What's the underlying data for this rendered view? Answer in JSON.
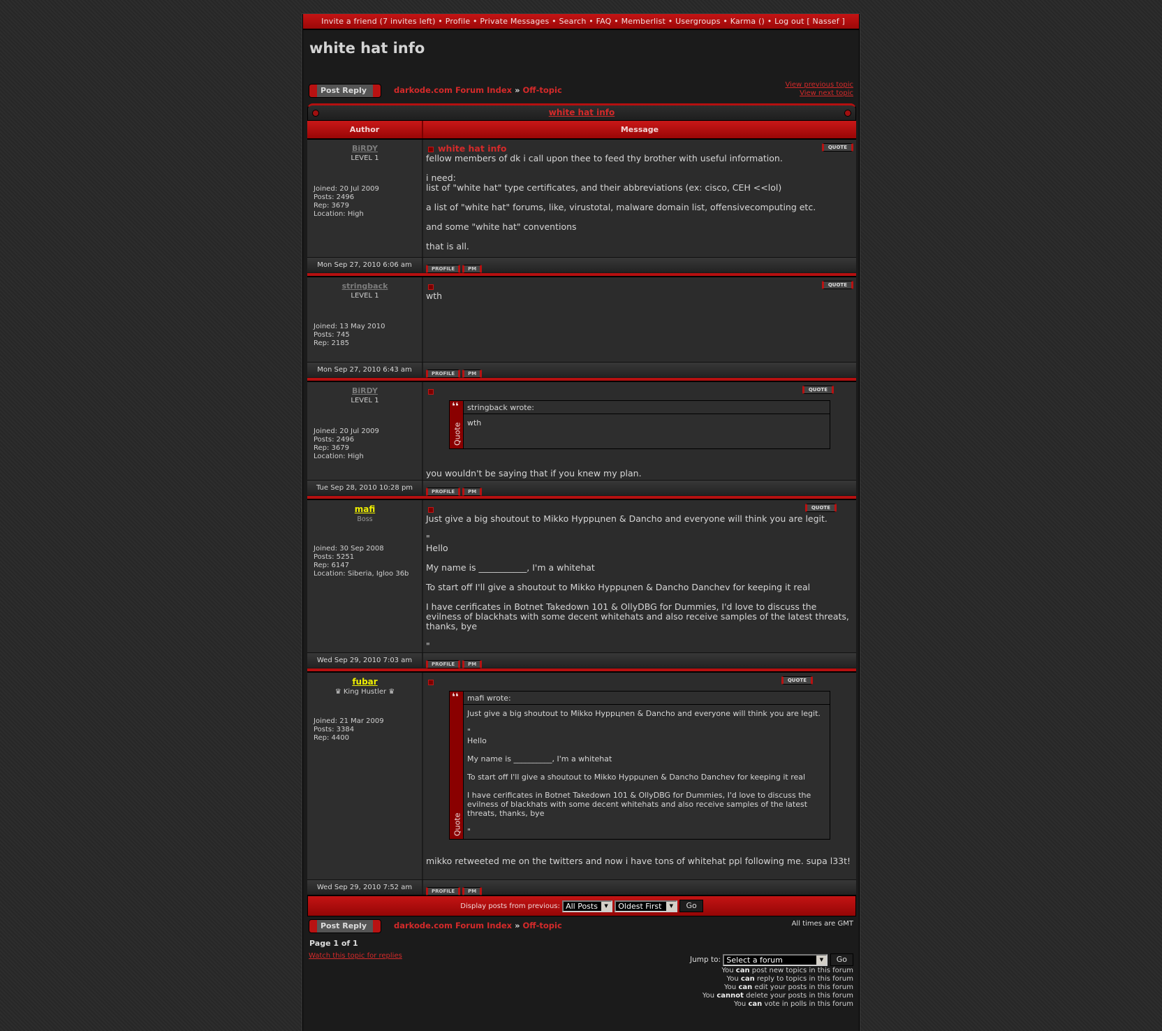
{
  "topnav": {
    "items": [
      "Invite a friend (7 invites left)",
      "Profile",
      "Private Messages",
      "Search",
      "FAQ",
      "Memberlist",
      "Usergroups",
      "Karma ()",
      "Log out [ Nassef ]"
    ]
  },
  "page_title": "white hat info",
  "post_reply_label": "Post Reply",
  "breadcrumb": {
    "forum_index": "darkode.com Forum Index",
    "separator": "»",
    "forum": "Off-topic"
  },
  "view_previous": "View previous topic",
  "view_next": "View next topic",
  "topic_title": "white hat info",
  "columns": {
    "author": "Author",
    "message": "Message"
  },
  "buttons": {
    "quote": "QUOTE",
    "profile": "PROFILE",
    "pm": "PM"
  },
  "quote_label": "Quote",
  "posts": [
    {
      "author": "BiRDY",
      "author_style": "level",
      "rank": "LEVEL 1",
      "details": [
        "Joined: 20 Jul 2009",
        "Posts: 2496",
        "Rep: 3679",
        "Location: High"
      ],
      "title": "white hat info",
      "body": [
        "fellow members of dk i call upon thee to feed thy brother with useful information.",
        "",
        "i need:",
        "list of \"white hat\" type certificates, and their abbreviations (ex: cisco, CEH <<lol)",
        "",
        "a list of \"white hat\" forums, like, virustotal, malware domain list, offensivecomputing etc.",
        "",
        "and some \"white hat\" conventions",
        "",
        "that is all."
      ],
      "date": "Mon Sep 27, 2010 6:06 am"
    },
    {
      "author": "stringback",
      "author_style": "level",
      "rank": "LEVEL 1",
      "details": [
        "Joined: 13 May 2010",
        "Posts: 745",
        "Rep: 2185"
      ],
      "title": "",
      "body": [
        "wth"
      ],
      "date": "Mon Sep 27, 2010 6:43 am"
    },
    {
      "author": "BiRDY",
      "author_style": "level",
      "rank": "LEVEL 1",
      "details": [
        "Joined: 20 Jul 2009",
        "Posts: 2496",
        "Rep: 3679",
        "Location: High"
      ],
      "title": "",
      "quote": {
        "header": "stringback wrote:",
        "body": [
          "wth",
          "",
          ""
        ]
      },
      "body": [
        "you wouldn't be saying that if you knew my plan."
      ],
      "date": "Tue Sep 28, 2010 10:28 pm"
    },
    {
      "author": "mafi",
      "author_style": "vip",
      "rank": "Boss",
      "details": [
        "Joined: 30 Sep 2008",
        "Posts: 5251",
        "Rep: 6147",
        "Location: Siberia, Igloo 36b"
      ],
      "title": "",
      "body": [
        "Just give a big shoutout to Mikko Hyppцnen & Dancho and everyone will think you are legit.",
        "",
        "\"",
        "Hello",
        "",
        "My name is ___________, I'm a whitehat",
        "",
        "To start off I'll give a shoutout to Mikko Hyppцnen & Dancho Danchev for keeping it real",
        "",
        "I have cerificates in Botnet Takedown 101 & OllyDBG for Dummies, I'd love to discuss the evilness of blackhats with some decent whitehats and also receive samples of the latest threats, thanks, bye",
        "",
        "\""
      ],
      "date": "Wed Sep 29, 2010 7:03 am"
    },
    {
      "author": "fubar",
      "author_style": "vip",
      "rank": "King Hustler",
      "rank_icon": "crown-icon",
      "details": [
        "Joined: 21 Mar 2009",
        "Posts: 3384",
        "Rep: 4400"
      ],
      "title": "",
      "quote": {
        "header": "mafi wrote:",
        "body": [
          "Just give a big shoutout to Mikko Hyppцnen & Dancho and everyone will think you are legit.",
          "",
          "\"",
          "Hello",
          "",
          "My name is __________, I'm a whitehat",
          "",
          "To start off I'll give a shoutout to Mikko Hyppцnen & Dancho Danchev for keeping it real",
          "",
          "I have cerificates in Botnet Takedown 101 & OllyDBG for Dummies, I'd love to discuss the evilness of blackhats with some decent whitehats and also receive samples of the latest threats, thanks, bye",
          "",
          "\""
        ]
      },
      "body": [
        "mikko retweeted me on the twitters and now i have tons of whitehat ppl following me. supa l33t!"
      ],
      "date": "Wed Sep 29, 2010 7:52 am"
    }
  ],
  "display_bar": {
    "label": "Display posts from previous:",
    "range": "All Posts",
    "order": "Oldest First",
    "go": "Go"
  },
  "timezone_note": "All times are GMT",
  "pagination": "Page 1 of 1",
  "watch_topic": "Watch this topic for replies",
  "jump": {
    "label": "Jump to:",
    "selected": "Select a forum",
    "go": "Go"
  },
  "permissions": [
    {
      "pre": "You",
      "verb": "can",
      "post": "post new topics in this forum"
    },
    {
      "pre": "You",
      "verb": "can",
      "post": "reply to topics in this forum"
    },
    {
      "pre": "You",
      "verb": "can",
      "post": "edit your posts in this forum"
    },
    {
      "pre": "You",
      "verb": "cannot",
      "post": "delete your posts in this forum"
    },
    {
      "pre": "You",
      "verb": "can",
      "post": "vote in polls in this forum"
    }
  ],
  "colors": {
    "accent_red": "#b51010",
    "link_red": "#d42a2a",
    "special_user": "#f0f000",
    "panel": "#2c2c2c"
  }
}
